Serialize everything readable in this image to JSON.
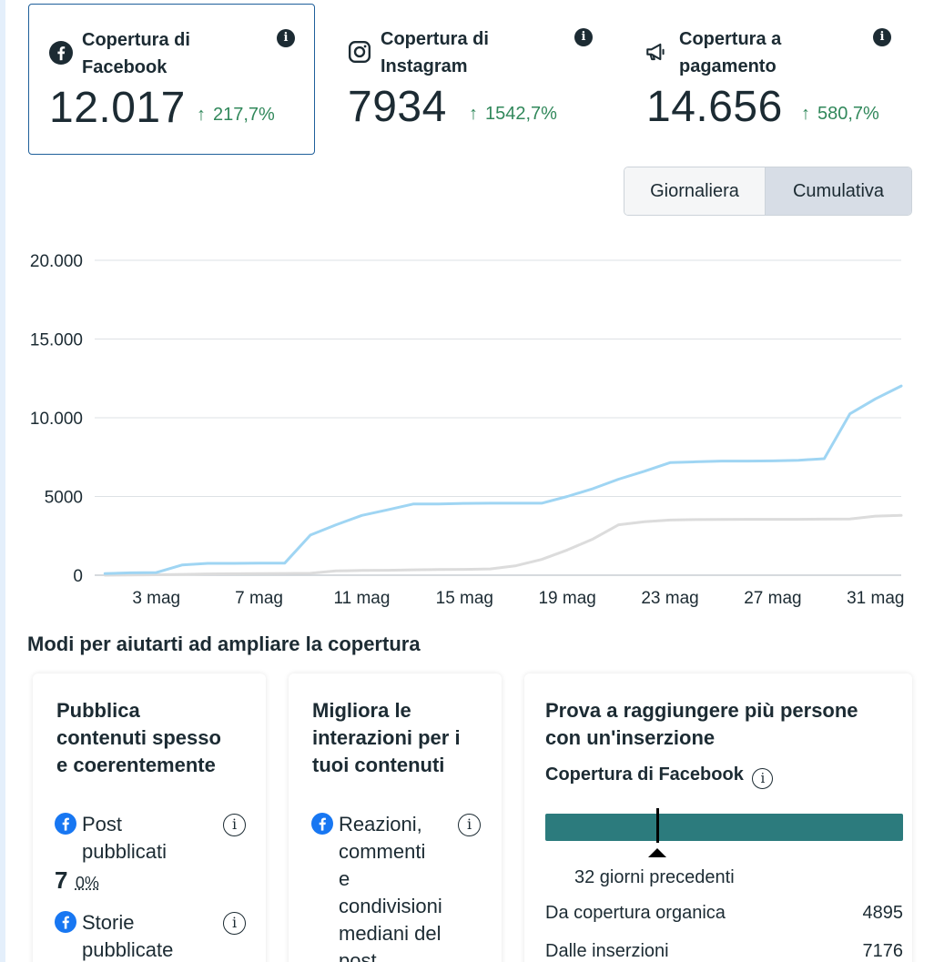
{
  "metrics": [
    {
      "title": "Copertura di Facebook",
      "value": "12.017",
      "change": "217,7%",
      "icon": "facebook-icon",
      "selected": true
    },
    {
      "title": "Copertura di Instagram",
      "value": "7934",
      "change": "1542,7%",
      "icon": "instagram-icon",
      "selected": false
    },
    {
      "title": "Copertura a pagamento",
      "value": "14.656",
      "change": "580,7%",
      "icon": "megaphone-icon",
      "selected": false
    }
  ],
  "toggle": {
    "daily": "Giornaliera",
    "cumulative": "Cumulativa",
    "active": "Cumulativa"
  },
  "colors": {
    "facebook_line": "#9fd5f3",
    "other_line": "#dcdcdc",
    "positive": "#31885b",
    "bar": "#2c7b7d"
  },
  "chart_data": {
    "type": "line",
    "x": [
      1,
      2,
      3,
      4,
      5,
      6,
      7,
      8,
      9,
      10,
      11,
      12,
      13,
      14,
      15,
      16,
      17,
      18,
      19,
      20,
      21,
      22,
      23,
      24,
      25,
      26,
      27,
      28,
      29,
      30,
      31,
      32
    ],
    "x_tick_labels": [
      "3 mag",
      "7 mag",
      "11 mag",
      "15 mag",
      "19 mag",
      "23 mag",
      "27 mag",
      "31 mag"
    ],
    "x_tick_values": [
      3,
      7,
      11,
      15,
      19,
      23,
      27,
      31
    ],
    "y_tick_labels": [
      "0",
      "5000",
      "10.000",
      "15.000",
      "20.000"
    ],
    "y_tick_values": [
      0,
      5000,
      10000,
      15000,
      20000
    ],
    "ylim": [
      0,
      20000
    ],
    "grid": true,
    "series": [
      {
        "values": [
          100,
          150,
          170,
          650,
          750,
          750,
          770,
          770,
          2550,
          3200,
          3800,
          4150,
          4520,
          4520,
          4560,
          4570,
          4570,
          4570,
          5000,
          5500,
          6100,
          6600,
          7150,
          7200,
          7250,
          7250,
          7260,
          7300,
          7400,
          10250,
          11200,
          12017
        ]
      },
      {
        "values": [
          0,
          20,
          30,
          50,
          80,
          90,
          100,
          110,
          120,
          270,
          300,
          310,
          340,
          360,
          370,
          400,
          600,
          1000,
          1600,
          2300,
          3200,
          3400,
          3500,
          3530,
          3540,
          3550,
          3550,
          3550,
          3560,
          3570,
          3750,
          3800
        ]
      }
    ]
  },
  "section": {
    "title": "Modi per aiutarti ad ampliare la copertura",
    "card1": {
      "title_lines": [
        "Pubblica",
        "contenuti spesso",
        "e coerentemente"
      ],
      "row1_lines": [
        "Post",
        "pubblicati"
      ],
      "row1_value": "7",
      "row1_pct": "0%",
      "row2_lines": [
        "Storie",
        "pubblicate"
      ]
    },
    "card2": {
      "title_lines": [
        "Migliora le",
        "interazioni per i",
        "tuoi contenuti"
      ],
      "row1_lines": [
        "Reazioni,",
        "commenti",
        "e",
        "condivisioni",
        "mediani del",
        "post"
      ]
    },
    "card3": {
      "title_lines": [
        "Prova a raggiungere più persone",
        "con un'inserzione"
      ],
      "subtitle": "Copertura di Facebook",
      "bar_caption": "32 giorni precedenti",
      "organic_label": "Da copertura organica",
      "organic_value": "4895",
      "ads_label": "Dalle inserzioni",
      "ads_value": "7176"
    }
  }
}
